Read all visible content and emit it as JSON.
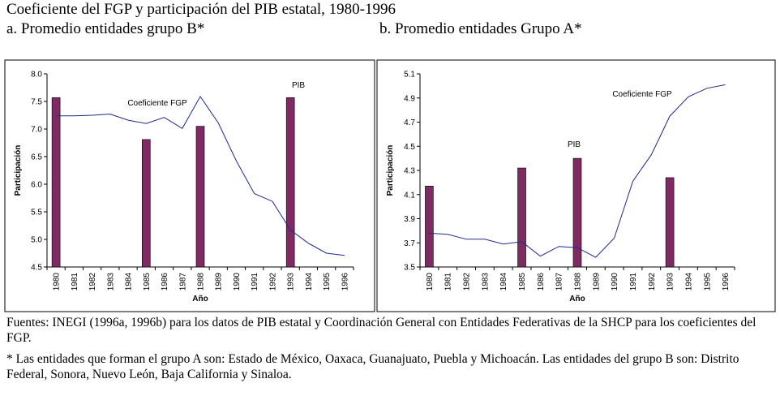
{
  "header": {
    "title": "Coeficiente del FGP y participación del PIB estatal, 1980-1996",
    "subtitle_a": "a. Promedio entidades grupo B*",
    "subtitle_b": "b. Promedio entidades Grupo A*"
  },
  "colors": {
    "bar": "#7f2a63",
    "line": "#1f2a8c",
    "frame": "#000000"
  },
  "chart_data": [
    {
      "type": "bar+line",
      "title": "a. Promedio entidades grupo B*",
      "xlabel": "Año",
      "ylabel": "Participación",
      "ylim": [
        4.5,
        8.0
      ],
      "yticks": [
        4.5,
        5.0,
        5.5,
        6.0,
        6.5,
        7.0,
        7.5,
        8.0
      ],
      "ytick_labels": [
        "4.5",
        "5.0",
        "5.5",
        "6.0",
        "6.5",
        "7.0",
        "7.5",
        "8.0"
      ],
      "categories": [
        "1980",
        "1981",
        "1982",
        "1983",
        "1984",
        "1985",
        "1986",
        "1987",
        "1988",
        "1989",
        "1990",
        "1991",
        "1992",
        "1993",
        "1994",
        "1995",
        "1996"
      ],
      "series": [
        {
          "name": "PIB",
          "kind": "bar",
          "x": [
            "1980",
            "1985",
            "1988",
            "1993"
          ],
          "values": [
            7.57,
            6.81,
            7.05,
            7.57
          ]
        },
        {
          "name": "Coeficiente FGP",
          "kind": "line",
          "values": [
            7.24,
            7.24,
            7.25,
            7.27,
            7.16,
            7.1,
            7.21,
            7.01,
            7.59,
            7.11,
            6.42,
            5.83,
            5.69,
            5.17,
            4.93,
            4.75,
            4.71
          ]
        }
      ],
      "annotations": [
        {
          "text": "Coeficiente FGP",
          "anchor": "1984"
        },
        {
          "text": "PIB",
          "anchor": "1993"
        }
      ]
    },
    {
      "type": "bar+line",
      "title": "b. Promedio entidades Grupo A*",
      "xlabel": "Año",
      "ylabel": "Participación",
      "ylim": [
        3.5,
        5.1
      ],
      "yticks": [
        3.5,
        3.7,
        3.9,
        4.1,
        4.3,
        4.5,
        4.7,
        4.9,
        5.1
      ],
      "ytick_labels": [
        "3.5",
        "3.7",
        "3.9",
        "4.1",
        "4.3",
        "4.5",
        "4.7",
        "4.9",
        "5.1"
      ],
      "categories": [
        "1980",
        "1981",
        "1982",
        "1983",
        "1984",
        "1985",
        "1986",
        "1987",
        "1988",
        "1989",
        "1990",
        "1991",
        "1992",
        "1993",
        "1994",
        "1995",
        "1996"
      ],
      "series": [
        {
          "name": "PIB",
          "kind": "bar",
          "x": [
            "1980",
            "1985",
            "1988",
            "1993"
          ],
          "values": [
            4.17,
            4.32,
            4.4,
            4.24
          ]
        },
        {
          "name": "Coeficiente FGP",
          "kind": "line",
          "values": [
            3.78,
            3.77,
            3.73,
            3.73,
            3.69,
            3.71,
            3.59,
            3.67,
            3.66,
            3.58,
            3.74,
            4.21,
            4.43,
            4.75,
            4.91,
            4.98,
            5.01
          ]
        }
      ],
      "annotations": [
        {
          "text": "Coeficiente FGP",
          "anchor": "1992"
        },
        {
          "text": "PIB",
          "anchor": "1988"
        }
      ]
    }
  ],
  "footnotes": {
    "sources": "Fuentes: INEGI (1996a, 1996b) para los datos de PIB estatal y Coordinación General con Entidades Federativas de la SHCP para los coeficientes del FGP.",
    "groups": "* Las entidades que forman el grupo A son: Estado de México, Oaxaca, Guanajuato, Puebla y Michoacán. Las entidades del grupo B son: Distrito Federal, Sonora, Nuevo León, Baja California y Sinaloa."
  }
}
